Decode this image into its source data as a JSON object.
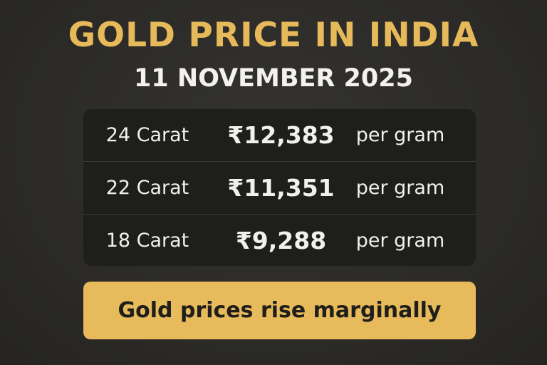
{
  "header": {
    "title": "GOLD PRICE IN INDIA",
    "date": "11 NOVEMBER 2025"
  },
  "table": {
    "rows": [
      [
        "24 Carat",
        "₹12,383",
        "per gram"
      ],
      [
        "22 Carat",
        "₹11,351",
        "per gram"
      ],
      [
        "18 Carat",
        "₹9,288",
        "per gram"
      ]
    ]
  },
  "banner": {
    "text": "Gold prices rise marginally"
  }
}
